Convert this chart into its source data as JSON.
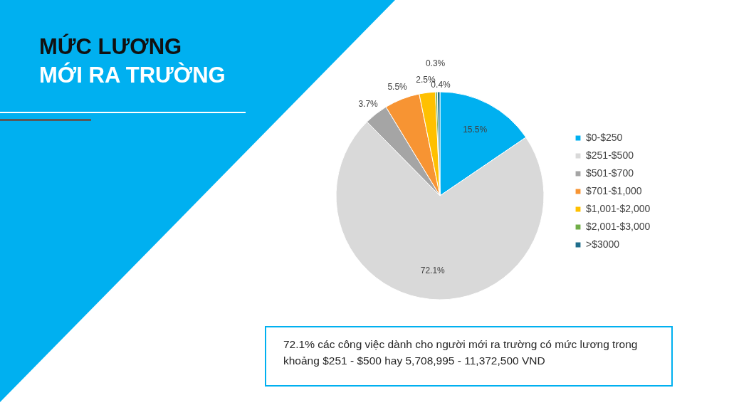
{
  "chart_data": {
    "type": "pie",
    "title": "MỨC LƯƠNG",
    "subtitle": "MỚI RA TRƯỜNG",
    "categories": [
      "$0-$250",
      "$251-$500",
      "$501-$700",
      "$701-$1,000",
      "$1,001-$2,000",
      "$2,001-$3,000",
      ">$3000"
    ],
    "values": [
      15.5,
      72.1,
      3.7,
      5.5,
      2.5,
      0.3,
      0.4
    ],
    "colors": [
      "#00b0f0",
      "#d9d9d9",
      "#a5a5a5",
      "#f79433",
      "#ffc000",
      "#70ad47",
      "#1f6e8c"
    ],
    "value_labels": [
      "15.5%",
      "72.1%",
      "3.7%",
      "5.5%",
      "2.5%",
      "0.3%",
      "0.4%"
    ],
    "legend": "right",
    "annotations": [
      "72.1% các công việc dành cho người mới ra trường có mức lương trong khoảng $251 - $500 hay 5,708,995 - 11,372,500 VND"
    ]
  }
}
